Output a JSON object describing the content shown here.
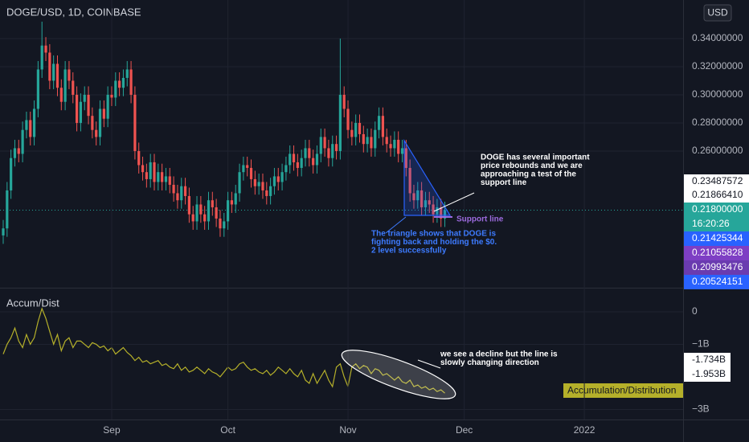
{
  "chart_data": [
    {
      "type": "candlestick",
      "title": "DOGE/USD, 1D, COINBASE",
      "currency": "USD",
      "up_color": "#26a69a",
      "down_color": "#ef5350",
      "xlim": [
        -0.83,
        175.5
      ],
      "ylim": [
        0.1634,
        0.3674
      ],
      "yticks": [
        {
          "value": 0.26,
          "label": "0.26000000"
        },
        {
          "value": 0.28,
          "label": "0.28000000"
        },
        {
          "value": 0.3,
          "label": "0.30000000"
        },
        {
          "value": 0.32,
          "label": "0.32000000"
        },
        {
          "value": 0.34,
          "label": "0.34000000"
        }
      ],
      "open": [
        0.2,
        0.205,
        0.232,
        0.255,
        0.262,
        0.258,
        0.275,
        0.282,
        0.27,
        0.29,
        0.318,
        0.335,
        0.33,
        0.31,
        0.322,
        0.305,
        0.295,
        0.318,
        0.31,
        0.3,
        0.28,
        0.295,
        0.3,
        0.285,
        0.275,
        0.27,
        0.29,
        0.283,
        0.3,
        0.298,
        0.31,
        0.305,
        0.312,
        0.318,
        0.3,
        0.26,
        0.25,
        0.245,
        0.24,
        0.252,
        0.238,
        0.245,
        0.238,
        0.242,
        0.236,
        0.23,
        0.225,
        0.235,
        0.228,
        0.215,
        0.21,
        0.222,
        0.215,
        0.21,
        0.225,
        0.22,
        0.212,
        0.205,
        0.21,
        0.225,
        0.222,
        0.23,
        0.245,
        0.25,
        0.248,
        0.24,
        0.235,
        0.238,
        0.232,
        0.228,
        0.235,
        0.242,
        0.238,
        0.245,
        0.25,
        0.258,
        0.252,
        0.248,
        0.255,
        0.262,
        0.255,
        0.25,
        0.258,
        0.27,
        0.262,
        0.255,
        0.265,
        0.26,
        0.3,
        0.29,
        0.275,
        0.27,
        0.28,
        0.272,
        0.265,
        0.27,
        0.262,
        0.275,
        0.285,
        0.27,
        0.265,
        0.262,
        0.268,
        0.258,
        0.262,
        0.248,
        0.23,
        0.225,
        0.232,
        0.22,
        0.225,
        0.222,
        0.215,
        0.22,
        0.212
      ],
      "high": [
        0.211,
        0.238,
        0.261,
        0.268,
        0.268,
        0.281,
        0.288,
        0.288,
        0.296,
        0.324,
        0.352,
        0.341,
        0.336,
        0.328,
        0.328,
        0.311,
        0.324,
        0.324,
        0.316,
        0.306,
        0.301,
        0.306,
        0.306,
        0.291,
        0.281,
        0.296,
        0.296,
        0.306,
        0.306,
        0.316,
        0.316,
        0.318,
        0.324,
        0.324,
        0.306,
        0.266,
        0.256,
        0.251,
        0.258,
        0.258,
        0.251,
        0.251,
        0.248,
        0.248,
        0.242,
        0.236,
        0.241,
        0.241,
        0.234,
        0.221,
        0.228,
        0.228,
        0.221,
        0.231,
        0.231,
        0.226,
        0.218,
        0.216,
        0.231,
        0.231,
        0.236,
        0.251,
        0.256,
        0.256,
        0.254,
        0.246,
        0.244,
        0.244,
        0.238,
        0.241,
        0.248,
        0.248,
        0.251,
        0.256,
        0.264,
        0.264,
        0.258,
        0.261,
        0.268,
        0.268,
        0.261,
        0.264,
        0.276,
        0.276,
        0.268,
        0.271,
        0.271,
        0.34,
        0.306,
        0.296,
        0.281,
        0.286,
        0.286,
        0.278,
        0.276,
        0.276,
        0.281,
        0.291,
        0.291,
        0.276,
        0.271,
        0.274,
        0.274,
        0.268,
        0.268,
        0.254,
        0.236,
        0.238,
        0.238,
        0.231,
        0.231,
        0.228,
        0.226,
        0.226,
        0.224
      ],
      "low": [
        0.194,
        0.199,
        0.226,
        0.249,
        0.252,
        0.252,
        0.269,
        0.264,
        0.264,
        0.284,
        0.312,
        0.324,
        0.304,
        0.304,
        0.299,
        0.289,
        0.289,
        0.304,
        0.294,
        0.274,
        0.274,
        0.289,
        0.279,
        0.269,
        0.264,
        0.264,
        0.277,
        0.277,
        0.292,
        0.292,
        0.299,
        0.299,
        0.306,
        0.294,
        0.254,
        0.244,
        0.239,
        0.234,
        0.234,
        0.232,
        0.232,
        0.232,
        0.232,
        0.23,
        0.224,
        0.219,
        0.219,
        0.222,
        0.209,
        0.204,
        0.204,
        0.209,
        0.204,
        0.204,
        0.214,
        0.206,
        0.199,
        0.199,
        0.204,
        0.216,
        0.216,
        0.224,
        0.239,
        0.242,
        0.234,
        0.229,
        0.229,
        0.226,
        0.222,
        0.222,
        0.229,
        0.232,
        0.232,
        0.239,
        0.244,
        0.246,
        0.242,
        0.242,
        0.249,
        0.249,
        0.244,
        0.244,
        0.252,
        0.256,
        0.249,
        0.249,
        0.254,
        0.254,
        0.284,
        0.269,
        0.264,
        0.264,
        0.266,
        0.259,
        0.259,
        0.256,
        0.256,
        0.269,
        0.264,
        0.259,
        0.256,
        0.256,
        0.252,
        0.252,
        0.242,
        0.224,
        0.219,
        0.219,
        0.214,
        0.214,
        0.216,
        0.209,
        0.209,
        0.206,
        0.206
      ],
      "close": [
        0.205,
        0.232,
        0.255,
        0.262,
        0.258,
        0.275,
        0.282,
        0.27,
        0.29,
        0.318,
        0.335,
        0.33,
        0.31,
        0.322,
        0.305,
        0.295,
        0.318,
        0.31,
        0.3,
        0.28,
        0.295,
        0.3,
        0.285,
        0.275,
        0.27,
        0.29,
        0.283,
        0.3,
        0.298,
        0.31,
        0.305,
        0.312,
        0.318,
        0.3,
        0.26,
        0.25,
        0.245,
        0.24,
        0.252,
        0.238,
        0.245,
        0.238,
        0.242,
        0.236,
        0.23,
        0.225,
        0.235,
        0.228,
        0.215,
        0.21,
        0.222,
        0.215,
        0.21,
        0.225,
        0.22,
        0.212,
        0.205,
        0.21,
        0.225,
        0.222,
        0.23,
        0.245,
        0.25,
        0.248,
        0.24,
        0.235,
        0.238,
        0.232,
        0.228,
        0.235,
        0.242,
        0.238,
        0.245,
        0.25,
        0.258,
        0.252,
        0.248,
        0.255,
        0.262,
        0.255,
        0.25,
        0.258,
        0.27,
        0.262,
        0.255,
        0.265,
        0.26,
        0.3,
        0.29,
        0.275,
        0.27,
        0.28,
        0.272,
        0.265,
        0.27,
        0.262,
        0.275,
        0.285,
        0.27,
        0.265,
        0.262,
        0.268,
        0.258,
        0.262,
        0.248,
        0.23,
        0.225,
        0.232,
        0.22,
        0.225,
        0.222,
        0.215,
        0.22,
        0.212,
        0.218
      ],
      "last_price": {
        "value": 0.218,
        "label": "0.21800000"
      },
      "countdown": "16:20:26",
      "price_tags": [
        {
          "value": 0.23487572,
          "label": "0.23487572",
          "color": "#ffffff"
        },
        {
          "value": 0.2186641,
          "label": "0.21866410",
          "color": "#ffffff"
        },
        {
          "value": 0.21425344,
          "label": "0.21425344",
          "color": "#2962ff"
        },
        {
          "value": 0.21055828,
          "label": "0.21055828",
          "color": "#7e3fc4"
        },
        {
          "value": 0.20993476,
          "label": "0.20993476",
          "color": "#6a3bb0"
        },
        {
          "value": 0.20524151,
          "label": "0.20524151",
          "color": "#2962ff"
        }
      ],
      "annotations": [
        {
          "lines": [
            "DOGE has several important",
            "price rebounds and we are",
            "approaching a test of the",
            "support line"
          ],
          "color": "#ffffff"
        },
        {
          "lines": [
            "The triangle shows that DOGE is",
            "fighting back and holding the $0.",
            "2 level successfully"
          ],
          "color": "#3d7bff"
        },
        {
          "lines": [
            "Support line"
          ],
          "color": "#9c6ade"
        }
      ]
    },
    {
      "type": "line",
      "title": "Accum/Dist",
      "name": "Accumulation/Distribution",
      "color": "#b5b02a",
      "xlim": [
        -0.83,
        175.5
      ],
      "ylim": [
        -3.31,
        0.69
      ],
      "yticks": [
        0,
        {
          "value": -1,
          "label": "−1B"
        },
        {
          "value": -3,
          "label": "−3B"
        }
      ],
      "xticks": [
        {
          "value": 28,
          "label": "Sep"
        },
        {
          "value": 58,
          "label": "Oct"
        },
        {
          "value": 89,
          "label": "Nov"
        },
        {
          "value": 119,
          "label": "Dec"
        },
        {
          "value": 150,
          "label": "2022"
        }
      ],
      "values": [
        -1.3,
        -1.0,
        -0.8,
        -0.5,
        -0.9,
        -1.1,
        -0.7,
        -1.0,
        -0.8,
        -0.3,
        0.1,
        -0.2,
        -0.6,
        -1.0,
        -0.7,
        -1.2,
        -0.9,
        -0.8,
        -1.1,
        -0.9,
        -0.9,
        -1.0,
        -1.1,
        -0.95,
        -1.0,
        -1.1,
        -1.05,
        -1.2,
        -1.1,
        -1.3,
        -1.2,
        -1.1,
        -1.25,
        -1.35,
        -1.5,
        -1.4,
        -1.55,
        -1.5,
        -1.6,
        -1.55,
        -1.5,
        -1.65,
        -1.6,
        -1.7,
        -1.75,
        -1.6,
        -1.8,
        -1.7,
        -1.85,
        -1.8,
        -1.7,
        -1.8,
        -1.9,
        -1.75,
        -1.85,
        -1.9,
        -2.0,
        -1.85,
        -1.7,
        -1.8,
        -1.75,
        -1.6,
        -1.55,
        -1.7,
        -1.8,
        -1.75,
        -1.85,
        -1.9,
        -1.8,
        -1.95,
        -1.85,
        -1.7,
        -1.8,
        -1.9,
        -1.75,
        -1.9,
        -2.0,
        -1.8,
        -2.1,
        -2.2,
        -1.9,
        -2.2,
        -2.0,
        -1.8,
        -2.1,
        -2.3,
        -1.7,
        -1.6,
        -2.0,
        -2.3,
        -1.7,
        -1.6,
        -1.75,
        -1.65,
        -1.7,
        -1.9,
        -1.75,
        -1.8,
        -1.95,
        -1.9,
        -2.0,
        -2.1,
        -2.0,
        -2.15,
        -2.2,
        -2.1,
        -2.3,
        -2.25,
        -2.35,
        -2.3,
        -2.4,
        -2.35,
        -2.45,
        -2.4,
        -2.5
      ],
      "value_tags": [
        {
          "value": -1.734,
          "label": "-1.734B"
        },
        {
          "value": -1.953,
          "label": "-1.953B"
        }
      ],
      "annotations": [
        {
          "lines": [
            "we see a decline but the line is",
            "slowly changing direction"
          ],
          "color": "#ffffff"
        }
      ]
    }
  ]
}
